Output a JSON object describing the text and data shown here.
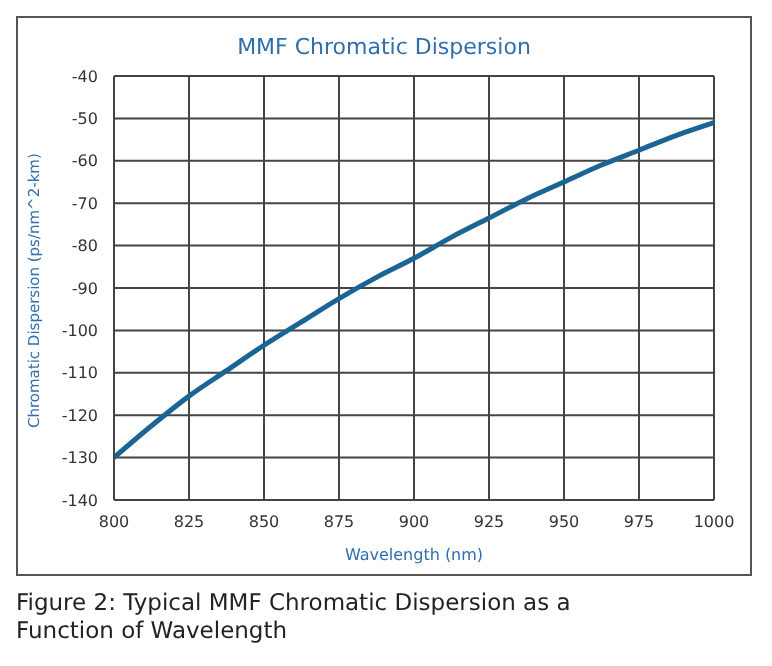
{
  "chart_data": {
    "type": "line",
    "title": "MMF Chromatic Dispersion",
    "xlabel": "Wavelength (nm)",
    "ylabel": "Chromatic Dispersion (ps/nm^2-km)",
    "x": [
      800,
      812.5,
      825,
      837.5,
      850,
      862.5,
      875,
      887.5,
      900,
      912.5,
      925,
      937.5,
      950,
      962.5,
      975,
      987.5,
      1000
    ],
    "series": [
      {
        "color": "#1b6496",
        "values": [
          -130,
          -122.5,
          -115.5,
          -109.5,
          -103.5,
          -98,
          -92.5,
          -87.5,
          -83,
          -78,
          -73.5,
          -69,
          -65,
          -61,
          -57.5,
          -54,
          -51
        ]
      }
    ],
    "xlim": [
      800,
      1000
    ],
    "xticks": [
      800,
      825,
      850,
      875,
      900,
      925,
      950,
      975,
      1000
    ],
    "ylim": [
      -140,
      -40
    ],
    "yticks": [
      -140,
      -130,
      -120,
      -110,
      -100,
      -90,
      -80,
      -70,
      -60,
      -50,
      -40
    ],
    "grid": true,
    "marker": "none",
    "line_style": "solid",
    "annotations": [
      "Figure 2: Typical MMF Chromatic Dispersion as a Function of Wavelength"
    ]
  }
}
